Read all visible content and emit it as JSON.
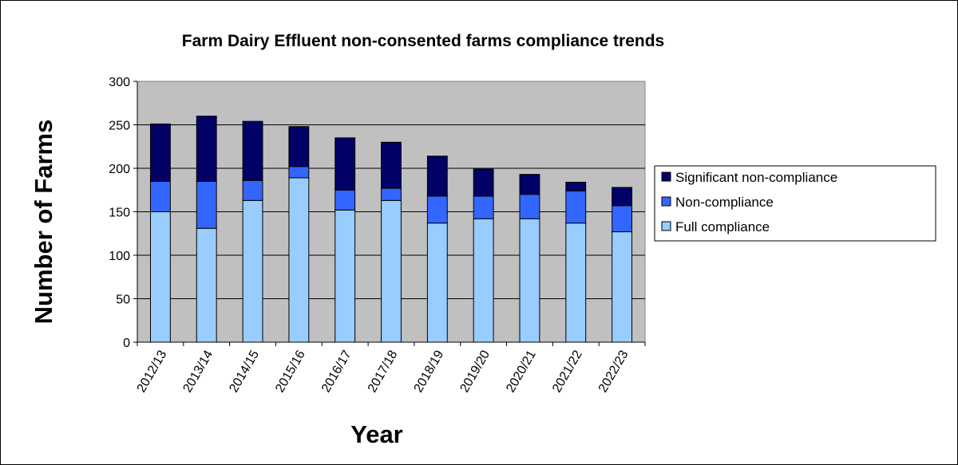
{
  "chart_data": {
    "type": "bar",
    "stacked": true,
    "title": "Farm Dairy Effluent non-consented farms compliance trends",
    "xlabel": "Year",
    "ylabel": "Number of Farms",
    "ylim": [
      0,
      300
    ],
    "yticks": [
      0,
      50,
      100,
      150,
      200,
      250,
      300
    ],
    "grid": true,
    "legend_position": "right",
    "categories": [
      "2012/13",
      "2013/14",
      "2014/15",
      "2015/16",
      "2016/17",
      "2017/18",
      "2018/19",
      "2019/20",
      "2020/21",
      "2021/22",
      "2022/23"
    ],
    "series": [
      {
        "name": "Full compliance",
        "color": "#99ccff",
        "values": [
          150,
          131,
          163,
          189,
          152,
          163,
          137,
          142,
          142,
          137,
          127
        ]
      },
      {
        "name": "Non-compliance",
        "color": "#3366ff",
        "values": [
          35,
          54,
          23,
          13,
          23,
          14,
          31,
          26,
          28,
          37,
          30
        ]
      },
      {
        "name": "Significant non-compliance",
        "color": "#000066",
        "values": [
          66,
          75,
          68,
          46,
          60,
          53,
          46,
          31,
          23,
          10,
          21
        ]
      }
    ]
  }
}
